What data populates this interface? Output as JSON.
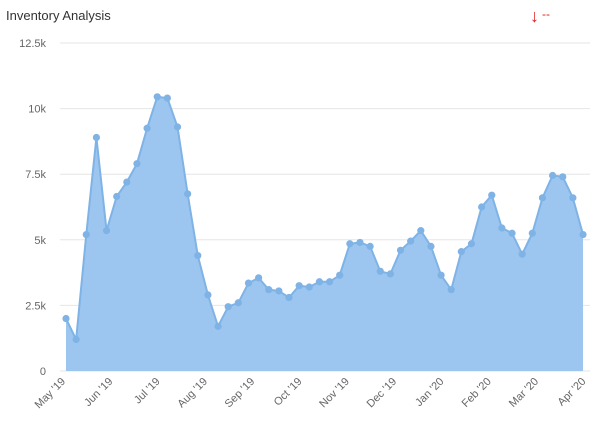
{
  "widget": {
    "title": "Inventory Analysis",
    "trend_arrow": "↓",
    "trend_value": "--"
  },
  "colors": {
    "fill": "#9cc6f0",
    "line": "#7fb3e6",
    "point": "#7fb3e6",
    "grid": "#e6e6e6",
    "trend": "#e02020"
  },
  "chart_data": {
    "type": "area",
    "title": "Inventory Analysis",
    "xlabel": "",
    "ylabel": "",
    "ylim": [
      0,
      12500
    ],
    "grid": true,
    "y_ticks": [
      0,
      2500,
      5000,
      7500,
      10000,
      12500
    ],
    "y_tick_labels": [
      "0",
      "2.5k",
      "5k",
      "7.5k",
      "10k",
      "12.5k"
    ],
    "x_tick_labels": [
      "May '19",
      "Jun '19",
      "Jul '19",
      "Aug '19",
      "Sep '19",
      "Oct '19",
      "Nov '19",
      "Dec '19",
      "Jan '20",
      "Feb '20",
      "Mar '20",
      "Apr '20"
    ],
    "series": [
      {
        "values": [
          2000,
          1200,
          5200,
          8900,
          5350,
          6650,
          7200,
          7900,
          9250,
          10450,
          10400,
          9300,
          6750,
          4400,
          2900,
          1700,
          2450,
          2600,
          3350,
          3550,
          3100,
          3050,
          2800,
          3250,
          3200,
          3400,
          3400,
          3650,
          4850,
          4900,
          4750,
          3800,
          3700,
          4600,
          4950,
          5350,
          4750,
          3650,
          3100,
          4550,
          4850,
          6250,
          6700,
          5450,
          5250,
          4450,
          5250,
          6600,
          7450,
          7400,
          6600,
          5200
        ]
      }
    ]
  }
}
